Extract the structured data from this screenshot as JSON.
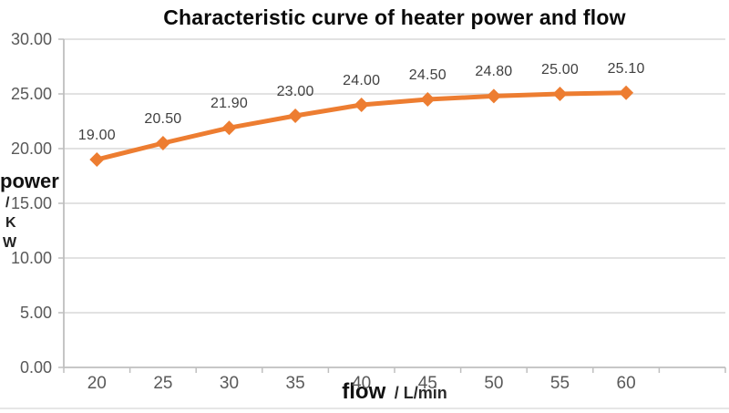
{
  "title": "Characteristic curve of heater power and flow",
  "chart_data": {
    "type": "line",
    "title": "Characteristic curve of heater power and flow",
    "x": [
      20,
      25,
      30,
      35,
      40,
      45,
      50,
      55,
      60
    ],
    "x_ticks": [
      "20",
      "25",
      "30",
      "35",
      "40",
      "45",
      "50",
      "55",
      "60"
    ],
    "series": [
      {
        "name": "power",
        "values": [
          19.0,
          20.5,
          21.9,
          23.0,
          24.0,
          24.5,
          24.8,
          25.0,
          25.1
        ]
      }
    ],
    "data_labels": [
      "19.00",
      "20.50",
      "21.90",
      "23.00",
      "24.00",
      "24.50",
      "24.80",
      "25.00",
      "25.10"
    ],
    "y_ticks": [
      "0.00",
      "5.00",
      "10.00",
      "15.00",
      "20.00",
      "25.00",
      "30.00"
    ],
    "ylim": [
      0,
      30
    ],
    "y_step": 5,
    "xlabel_main": "flow",
    "xlabel_unit": "/ L/min",
    "ylabel_lines": [
      "power",
      "/",
      "K",
      "W"
    ],
    "grid": "horizontal",
    "legend": "none",
    "line_color": "#ED7D31",
    "marker": "diamond",
    "gridline_color": "#D9D9D9",
    "axis_color": "#BFBFBF",
    "tick_label_color": "#595959",
    "data_label_color": "#404040"
  }
}
